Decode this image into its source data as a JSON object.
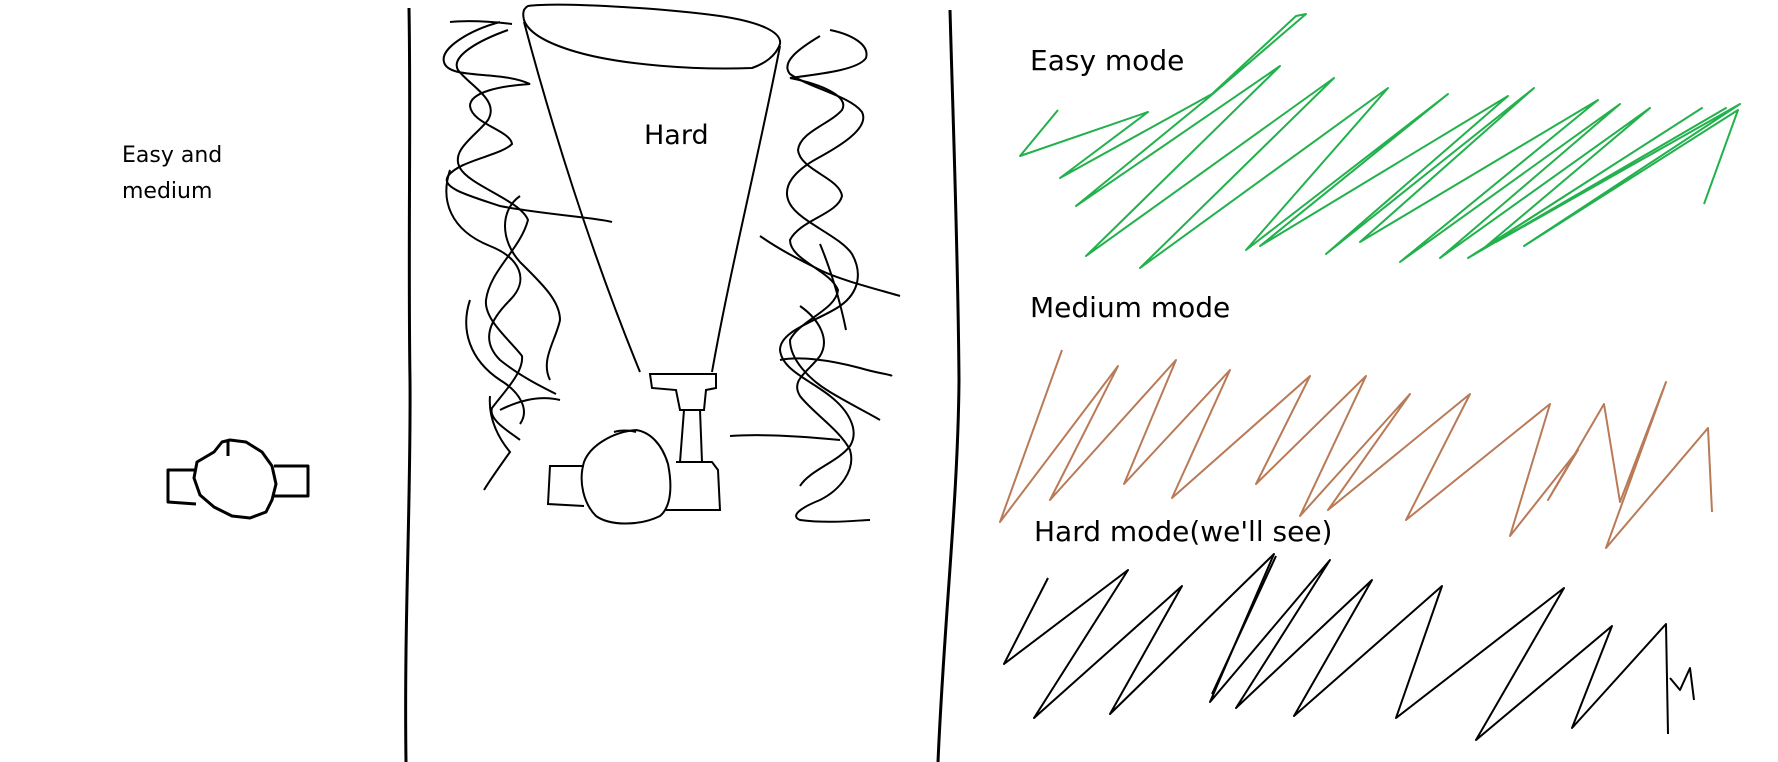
{
  "labels": {
    "easy_and": "Easy and",
    "medium": "medium",
    "hard": "Hard",
    "easy_mode": "Easy mode",
    "medium_mode": "Medium mode",
    "hard_mode": "Hard mode(we'll see)"
  },
  "colors": {
    "ink": "#000000",
    "easy_scribble": "#22b14c",
    "medium_scribble": "#b97a57",
    "hard_scribble": "#000000",
    "background": "#ffffff"
  }
}
